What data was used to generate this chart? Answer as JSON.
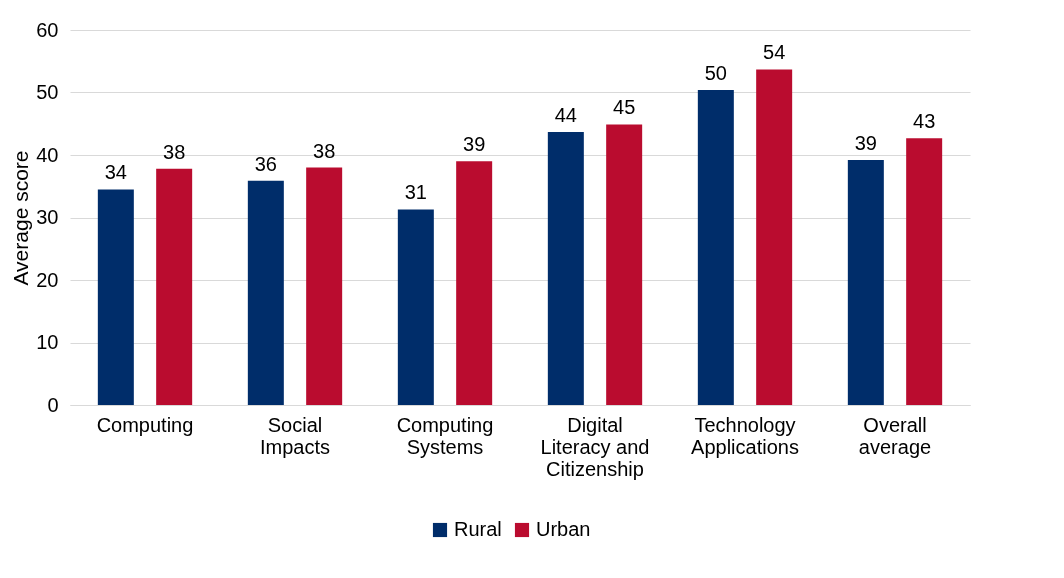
{
  "chart_data": {
    "type": "bar",
    "ylabel": "Average score",
    "categories": [
      "Computing",
      "Social Impacts",
      "Computing Systems",
      "Digital Literacy and Citizenship",
      "Technology Applications",
      "Overall average"
    ],
    "series": [
      {
        "name": "Rural",
        "color": "#002d6a",
        "values": [
          34.5,
          35.9,
          31.3,
          43.7,
          50.4,
          39.2
        ],
        "value_labels": [
          "34",
          "36",
          "31",
          "44",
          "50",
          "39"
        ]
      },
      {
        "name": "Urban",
        "color": "#ba0c2f",
        "values": [
          37.8,
          38.0,
          39.0,
          44.9,
          53.7,
          42.7
        ],
        "value_labels": [
          "38",
          "38",
          "39",
          "45",
          "54",
          "43"
        ]
      }
    ],
    "ylim": [
      0,
      60
    ],
    "yticks": [
      0,
      10,
      20,
      30,
      40,
      50,
      60
    ],
    "grid": "y",
    "legend": "bottom"
  }
}
